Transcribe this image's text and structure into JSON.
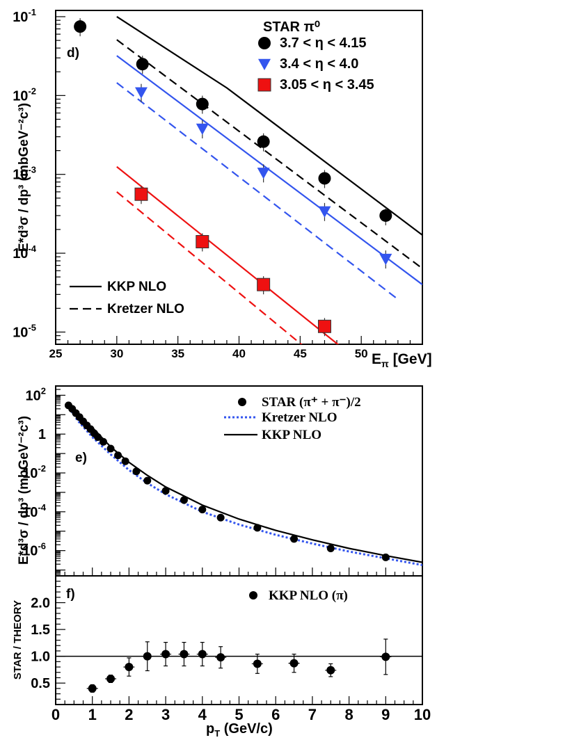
{
  "chart_data": [
    {
      "panel": "d)",
      "type": "scatter",
      "x_scale": "linear",
      "y_scale": "log",
      "xlim": [
        25,
        55
      ],
      "ylim": [
        7e-06,
        0.12
      ],
      "x_ticks": [
        "25",
        "30",
        "35",
        "40",
        "45",
        "50"
      ],
      "x_tick_values": [
        25,
        30,
        35,
        40,
        45,
        50
      ],
      "y_tick_labels": [
        {
          "base": "10",
          "exp": "-1",
          "value": 0.1
        },
        {
          "base": "10",
          "exp": "-2",
          "value": 0.01
        },
        {
          "base": "10",
          "exp": "-3",
          "value": 0.001
        },
        {
          "base": "10",
          "exp": "-4",
          "value": 0.0001
        },
        {
          "base": "10",
          "exp": "-5",
          "value": 1e-05
        }
      ],
      "xlabel": {
        "main": "E",
        "sub": "π",
        "unit": " [GeV]"
      },
      "ylabel": "E*d³σ / dp³ (mbGeV⁻²c³)",
      "legend_title": "STAR π⁰",
      "series": [
        {
          "name": "3.7 < η < 4.15",
          "marker": "circle",
          "color": "#000000",
          "x": [
            27.0,
            32.1,
            37.0,
            42.0,
            47.0,
            52.0
          ],
          "y": [
            0.075,
            0.025,
            0.0078,
            0.0026,
            0.00089,
            0.0003
          ]
        },
        {
          "name": "3.4 < η < 4.0",
          "marker": "triangle-down",
          "color": "#3355ee",
          "x": [
            32.0,
            37.0,
            42.0,
            47.0,
            52.0
          ],
          "y": [
            0.011,
            0.0038,
            0.00105,
            0.00034,
            8.5e-05
          ]
        },
        {
          "name": "3.05 < η < 3.45",
          "marker": "square",
          "color": "#ee1111",
          "x": [
            32.0,
            37.0,
            42.0,
            47.0
          ],
          "y": [
            0.00056,
            0.00014,
            4e-05,
            1.18e-05
          ]
        }
      ],
      "curves": [
        {
          "name": "KKP NLO",
          "style": "solid",
          "color": "#000000",
          "x": [
            30.0,
            39.0,
            55.0
          ],
          "y": [
            0.1,
            0.0125,
            0.00017
          ]
        },
        {
          "name": "Kretzer NLO",
          "style": "dashed",
          "color": "#000000",
          "x": [
            30.0,
            55.0
          ],
          "y": [
            0.051,
            6.4e-05
          ]
        },
        {
          "name": "",
          "style": "solid",
          "color": "#3355ee",
          "x": [
            30.0,
            55.0
          ],
          "y": [
            0.032,
            4e-05
          ]
        },
        {
          "name": "",
          "style": "dashed",
          "color": "#3355ee",
          "x": [
            30.0,
            53.0
          ],
          "y": [
            0.0145,
            2.6e-05
          ]
        },
        {
          "name": "",
          "style": "solid",
          "color": "#ee1111",
          "x": [
            30.0,
            48.5
          ],
          "y": [
            0.00125,
            6.2e-06
          ]
        },
        {
          "name": "",
          "style": "dashed",
          "color": "#ee1111",
          "x": [
            30.0,
            45.5
          ],
          "y": [
            0.0006,
            6.2e-06
          ]
        }
      ],
      "legend_lines": [
        "KKP NLO",
        "Kretzer NLO"
      ]
    },
    {
      "panel": "e)",
      "type": "scatter",
      "x_scale": "linear",
      "y_scale": "log",
      "xlim": [
        0,
        10
      ],
      "ylim": [
        5e-08,
        300
      ],
      "y_tick_labels": [
        {
          "base": "10",
          "exp": "2",
          "value": 100
        },
        {
          "base": "1",
          "exp": "",
          "value": 1
        },
        {
          "base": "10",
          "exp": "-2",
          "value": 0.01
        },
        {
          "base": "10",
          "exp": "-4",
          "value": 0.0001
        },
        {
          "base": "10",
          "exp": "-6",
          "value": 1e-06
        }
      ],
      "ylabel": "E*d³σ / dp³ (mbGeV⁻²c³)",
      "series": [
        {
          "name": "STAR (π⁺ + π⁻)/2",
          "marker": "circle",
          "color": "#000000",
          "x": [
            0.35,
            0.45,
            0.55,
            0.65,
            0.75,
            0.85,
            0.95,
            1.05,
            1.15,
            1.3,
            1.5,
            1.7,
            1.9,
            2.2,
            2.5,
            3.0,
            3.5,
            4.0,
            4.5,
            5.5,
            6.5,
            7.5,
            9.0
          ],
          "y": [
            30,
            20,
            12,
            7.5,
            4.5,
            2.8,
            1.8,
            1.1,
            0.7,
            0.4,
            0.18,
            0.08,
            0.04,
            0.012,
            0.004,
            0.0012,
            0.0004,
            0.00013,
            5e-05,
            1.5e-05,
            4e-06,
            1.3e-06,
            4.5e-07
          ]
        }
      ],
      "curves": [
        {
          "name": "Kretzer NLO",
          "style": "dotted",
          "color": "#3355ee",
          "x": [
            0.3,
            0.6,
            1.0,
            1.5,
            2.0,
            2.5,
            3.0,
            4.0,
            5.0,
            6.0,
            7.0,
            8.0,
            9.0,
            10.0
          ],
          "y": [
            35,
            5,
            0.7,
            0.09,
            0.014,
            0.003,
            0.0008,
            0.0001,
            2.2e-05,
            6.5e-06,
            2.3e-06,
            9e-07,
            4e-07,
            1.8e-07
          ]
        },
        {
          "name": "KKP NLO",
          "style": "solid",
          "color": "#000000",
          "x": [
            1.0,
            1.5,
            2.0,
            2.5,
            3.0,
            4.0,
            5.0,
            6.0,
            7.0,
            8.0,
            9.0,
            10.0
          ],
          "y": [
            2.2,
            0.22,
            0.035,
            0.0075,
            0.0019,
            0.00022,
            4.2e-05,
            1.1e-05,
            3.6e-06,
            1.3e-06,
            5.5e-07,
            2.5e-07
          ]
        }
      ]
    },
    {
      "panel": "f)",
      "type": "scatter",
      "xlim": [
        0,
        10
      ],
      "ylim": [
        0.1,
        2.5
      ],
      "x_ticks": [
        "0",
        "1",
        "2",
        "3",
        "4",
        "5",
        "6",
        "7",
        "8",
        "9",
        "10"
      ],
      "x_tick_values": [
        0,
        1,
        2,
        3,
        4,
        5,
        6,
        7,
        8,
        9,
        10
      ],
      "y_ticks": [
        "0.5",
        "1.0",
        "1.5",
        "2.0"
      ],
      "y_tick_values": [
        0.5,
        1.0,
        1.5,
        2.0
      ],
      "xlabel": {
        "main": "p",
        "sub": "T",
        "unit": " (GeV/c)"
      },
      "ylabel": "STAR / THEORY",
      "reference_line": 1.0,
      "series": [
        {
          "name": "KKP NLO (π)",
          "marker": "circle",
          "color": "#000000",
          "x": [
            1.0,
            1.5,
            2.0,
            2.5,
            3.0,
            3.5,
            4.0,
            4.5,
            5.5,
            6.5,
            7.5,
            9.0
          ],
          "y": [
            0.4,
            0.58,
            0.8,
            1.0,
            1.04,
            1.04,
            1.04,
            0.98,
            0.86,
            0.87,
            0.74,
            0.99
          ],
          "err": [
            0.07,
            0.07,
            0.17,
            0.27,
            0.22,
            0.22,
            0.22,
            0.2,
            0.18,
            0.17,
            0.12,
            0.33
          ]
        }
      ]
    }
  ]
}
